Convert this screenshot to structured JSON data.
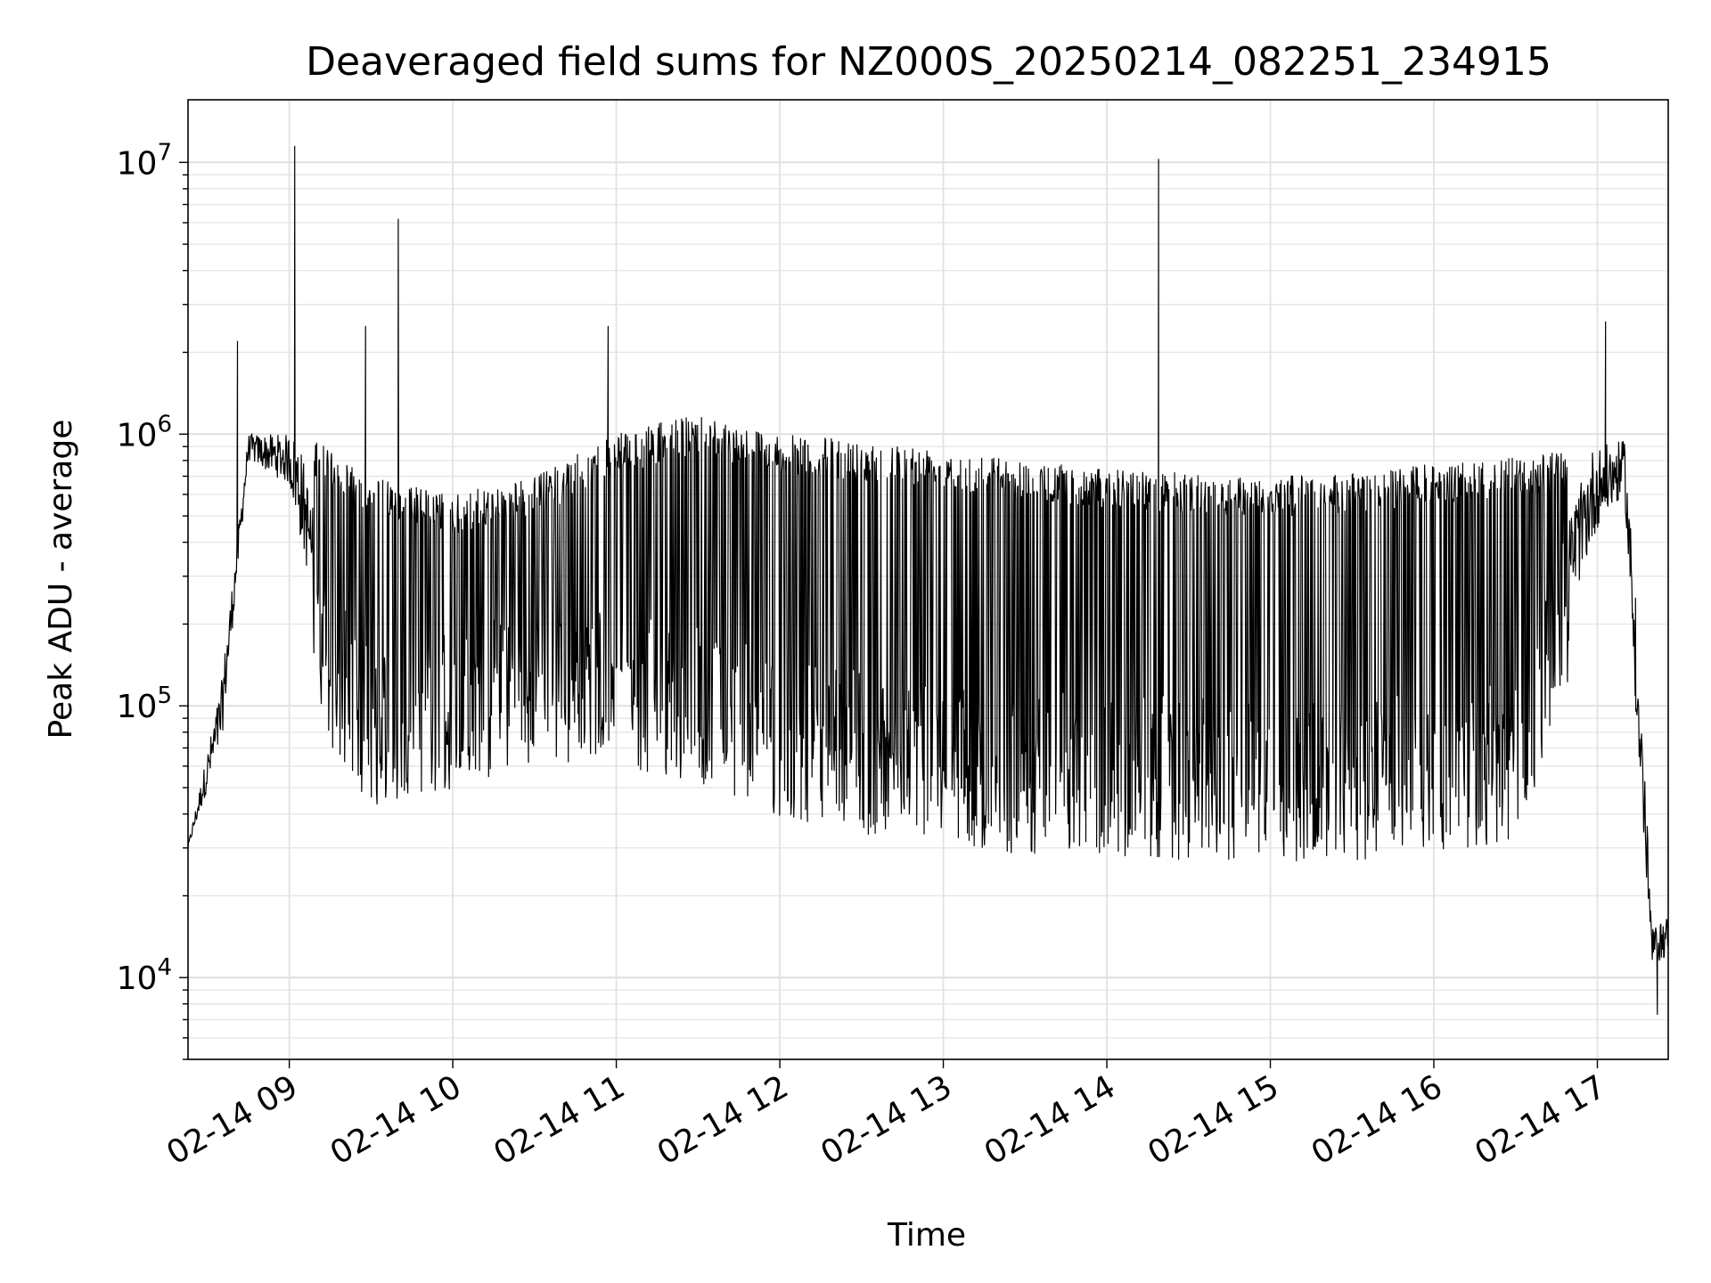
{
  "chart_data": {
    "type": "line",
    "title": "Deaveraged field sums for NZ000S_20250214_082251_234915",
    "xlabel": "Time",
    "ylabel": "Peak ADU - average",
    "xaxis": {
      "type": "time",
      "range": [
        "2025-02-14 08:22:51",
        "2025-02-14 17:26:00"
      ],
      "ticks": [
        "02-14 09",
        "02-14 10",
        "02-14 11",
        "02-14 12",
        "02-14 13",
        "02-14 14",
        "02-14 15",
        "02-14 16",
        "02-14 17"
      ],
      "tick_times": [
        "2025-02-14 09:00",
        "2025-02-14 10:00",
        "2025-02-14 11:00",
        "2025-02-14 12:00",
        "2025-02-14 13:00",
        "2025-02-14 14:00",
        "2025-02-14 15:00",
        "2025-02-14 16:00",
        "2025-02-14 17:00"
      ]
    },
    "yaxis": {
      "scale": "log",
      "range": [
        5000,
        17000000
      ],
      "ticks": [
        {
          "base": "10",
          "exp": "4",
          "value": 10000
        },
        {
          "base": "10",
          "exp": "5",
          "value": 100000
        },
        {
          "base": "10",
          "exp": "6",
          "value": 1000000
        },
        {
          "base": "10",
          "exp": "7",
          "value": 10000000
        }
      ]
    },
    "grid": true,
    "line_color": "#000000",
    "series_key_points": {
      "time": [
        "2025-02-14 08:22",
        "2025-02-14 08:35",
        "2025-02-14 08:45",
        "2025-02-14 09:00",
        "2025-02-14 09:15",
        "2025-02-14 09:30",
        "2025-02-14 10:00",
        "2025-02-14 10:30",
        "2025-02-14 11:00",
        "2025-02-14 11:30",
        "2025-02-14 12:00",
        "2025-02-14 12:30",
        "2025-02-14 13:00",
        "2025-02-14 13:30",
        "2025-02-14 14:00",
        "2025-02-14 14:30",
        "2025-02-14 15:00",
        "2025-02-14 15:30",
        "2025-02-14 16:00",
        "2025-02-14 16:30",
        "2025-02-14 17:00",
        "2025-02-14 17:10",
        "2025-02-14 17:15",
        "2025-02-14 17:20",
        "2025-02-14 17:26"
      ],
      "baseline": [
        28000,
        70000,
        800000,
        650000,
        120000,
        75000,
        85000,
        110000,
        105000,
        90000,
        70000,
        60000,
        55000,
        50000,
        50000,
        48000,
        47000,
        48000,
        50000,
        55000,
        450000,
        600000,
        60000,
        11000,
        12000
      ],
      "upper": [
        28000,
        120000,
        1000000,
        1000000,
        900000,
        700000,
        600000,
        700000,
        1000000,
        1200000,
        1000000,
        950000,
        900000,
        800000,
        750000,
        720000,
        700000,
        720000,
        780000,
        820000,
        900000,
        950000,
        200000,
        15000,
        17000
      ]
    },
    "spikes": [
      {
        "time": "2025-02-14 08:41",
        "value": 2200000
      },
      {
        "time": "2025-02-14 09:02",
        "value": 11500000
      },
      {
        "time": "2025-02-14 09:28",
        "value": 2500000
      },
      {
        "time": "2025-02-14 09:40",
        "value": 6200000
      },
      {
        "time": "2025-02-14 10:57",
        "value": 2500000
      },
      {
        "time": "2025-02-14 14:19",
        "value": 10300000
      },
      {
        "time": "2025-02-14 17:03",
        "value": 2600000
      },
      {
        "time": "2025-02-14 17:14",
        "value": 250000
      }
    ],
    "minimum": {
      "time": "2025-02-14 17:22",
      "value": 7300
    }
  }
}
